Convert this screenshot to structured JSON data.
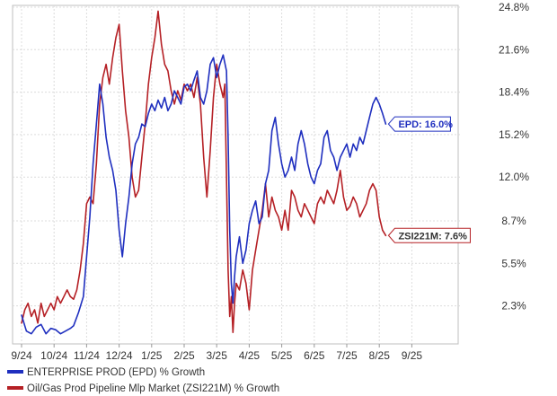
{
  "chart_data": {
    "type": "line",
    "title": "",
    "xlabel": "",
    "ylabel": "",
    "x_ticks": [
      "9/24",
      "10/24",
      "11/24",
      "12/24",
      "1/25",
      "2/25",
      "3/25",
      "4/25",
      "5/25",
      "6/25",
      "7/25",
      "8/25",
      "9/25"
    ],
    "y_ticks": [
      "2.3%",
      "5.5%",
      "8.7%",
      "12.0%",
      "15.2%",
      "18.4%",
      "21.6%",
      "24.8%"
    ],
    "ylim": [
      -0.5,
      24.8
    ],
    "grid": true,
    "legend_position": "bottom-left",
    "x_units": "months since 9/24",
    "series": [
      {
        "name": "ENTERPRISE PROD (EPD) % Growth",
        "color": "#1f2fbf",
        "callout": "EPD: 16.0%",
        "points": [
          [
            0.0,
            1.6
          ],
          [
            0.15,
            0.4
          ],
          [
            0.3,
            0.2
          ],
          [
            0.45,
            0.7
          ],
          [
            0.6,
            0.9
          ],
          [
            0.75,
            0.2
          ],
          [
            0.9,
            0.6
          ],
          [
            1.05,
            0.5
          ],
          [
            1.2,
            0.2
          ],
          [
            1.35,
            0.4
          ],
          [
            1.5,
            0.6
          ],
          [
            1.6,
            0.8
          ],
          [
            1.75,
            1.8
          ],
          [
            1.9,
            3.0
          ],
          [
            2.0,
            6.0
          ],
          [
            2.1,
            9.0
          ],
          [
            2.2,
            13.0
          ],
          [
            2.3,
            16.0
          ],
          [
            2.4,
            19.0
          ],
          [
            2.5,
            17.5
          ],
          [
            2.6,
            15.0
          ],
          [
            2.7,
            13.5
          ],
          [
            2.8,
            12.5
          ],
          [
            2.9,
            11.0
          ],
          [
            3.0,
            8.0
          ],
          [
            3.1,
            6.0
          ],
          [
            3.2,
            8.5
          ],
          [
            3.3,
            10.5
          ],
          [
            3.4,
            13.0
          ],
          [
            3.5,
            14.5
          ],
          [
            3.6,
            15.0
          ],
          [
            3.7,
            16.0
          ],
          [
            3.8,
            15.8
          ],
          [
            3.9,
            16.8
          ],
          [
            4.0,
            17.5
          ],
          [
            4.1,
            17.0
          ],
          [
            4.2,
            17.8
          ],
          [
            4.3,
            17.2
          ],
          [
            4.4,
            18.0
          ],
          [
            4.5,
            17.0
          ],
          [
            4.6,
            17.5
          ],
          [
            4.7,
            18.5
          ],
          [
            4.8,
            18.0
          ],
          [
            4.9,
            17.5
          ],
          [
            5.0,
            18.8
          ],
          [
            5.1,
            19.0
          ],
          [
            5.2,
            18.5
          ],
          [
            5.3,
            19.3
          ],
          [
            5.4,
            20.0
          ],
          [
            5.5,
            18.0
          ],
          [
            5.6,
            17.5
          ],
          [
            5.7,
            18.5
          ],
          [
            5.8,
            20.5
          ],
          [
            5.9,
            21.0
          ],
          [
            6.0,
            19.5
          ],
          [
            6.1,
            20.5
          ],
          [
            6.2,
            21.2
          ],
          [
            6.3,
            20.0
          ],
          [
            6.35,
            15.0
          ],
          [
            6.4,
            8.0
          ],
          [
            6.45,
            4.0
          ],
          [
            6.5,
            2.5
          ],
          [
            6.55,
            4.5
          ],
          [
            6.6,
            6.0
          ],
          [
            6.7,
            7.5
          ],
          [
            6.8,
            5.5
          ],
          [
            6.9,
            6.5
          ],
          [
            7.0,
            8.5
          ],
          [
            7.1,
            9.5
          ],
          [
            7.2,
            10.2
          ],
          [
            7.3,
            8.5
          ],
          [
            7.4,
            9.0
          ],
          [
            7.5,
            11.5
          ],
          [
            7.6,
            12.5
          ],
          [
            7.7,
            15.5
          ],
          [
            7.8,
            16.5
          ],
          [
            7.9,
            14.5
          ],
          [
            8.0,
            13.0
          ],
          [
            8.1,
            12.0
          ],
          [
            8.2,
            12.5
          ],
          [
            8.3,
            13.5
          ],
          [
            8.4,
            12.5
          ],
          [
            8.5,
            14.5
          ],
          [
            8.6,
            15.5
          ],
          [
            8.7,
            14.5
          ],
          [
            8.8,
            13.0
          ],
          [
            8.9,
            12.0
          ],
          [
            9.0,
            11.5
          ],
          [
            9.1,
            12.5
          ],
          [
            9.2,
            13.0
          ],
          [
            9.3,
            15.0
          ],
          [
            9.4,
            15.5
          ],
          [
            9.5,
            14.0
          ],
          [
            9.6,
            13.5
          ],
          [
            9.7,
            12.5
          ],
          [
            9.8,
            13.5
          ],
          [
            9.9,
            14.0
          ],
          [
            10.0,
            14.5
          ],
          [
            10.1,
            13.5
          ],
          [
            10.2,
            14.5
          ],
          [
            10.3,
            14.0
          ],
          [
            10.4,
            15.0
          ],
          [
            10.5,
            14.5
          ],
          [
            10.6,
            15.5
          ],
          [
            10.7,
            16.5
          ],
          [
            10.8,
            17.5
          ],
          [
            10.9,
            18.0
          ],
          [
            11.0,
            17.5
          ],
          [
            11.1,
            16.8
          ],
          [
            11.2,
            16.0
          ]
        ]
      },
      {
        "name": "Oil/Gas Prod Pipeline Mlp Market (ZSI221M) % Growth",
        "color": "#b52025",
        "callout": "ZSI221M: 7.6%",
        "points": [
          [
            0.0,
            1.0
          ],
          [
            0.1,
            2.0
          ],
          [
            0.2,
            2.5
          ],
          [
            0.3,
            1.5
          ],
          [
            0.4,
            2.0
          ],
          [
            0.5,
            1.0
          ],
          [
            0.6,
            2.5
          ],
          [
            0.7,
            1.5
          ],
          [
            0.8,
            2.0
          ],
          [
            0.9,
            2.5
          ],
          [
            1.0,
            2.0
          ],
          [
            1.1,
            3.0
          ],
          [
            1.2,
            2.5
          ],
          [
            1.3,
            3.0
          ],
          [
            1.4,
            3.5
          ],
          [
            1.5,
            3.0
          ],
          [
            1.6,
            2.8
          ],
          [
            1.7,
            3.5
          ],
          [
            1.8,
            5.0
          ],
          [
            1.9,
            7.0
          ],
          [
            2.0,
            10.0
          ],
          [
            2.1,
            10.5
          ],
          [
            2.2,
            10.0
          ],
          [
            2.3,
            13.0
          ],
          [
            2.4,
            17.5
          ],
          [
            2.5,
            19.5
          ],
          [
            2.6,
            20.5
          ],
          [
            2.7,
            19.0
          ],
          [
            2.8,
            21.0
          ],
          [
            2.9,
            22.5
          ],
          [
            3.0,
            23.5
          ],
          [
            3.1,
            20.0
          ],
          [
            3.2,
            17.0
          ],
          [
            3.3,
            15.0
          ],
          [
            3.4,
            12.0
          ],
          [
            3.5,
            10.5
          ],
          [
            3.6,
            11.0
          ],
          [
            3.7,
            13.5
          ],
          [
            3.8,
            16.0
          ],
          [
            3.9,
            19.0
          ],
          [
            4.0,
            21.0
          ],
          [
            4.1,
            22.5
          ],
          [
            4.2,
            24.5
          ],
          [
            4.3,
            22.0
          ],
          [
            4.4,
            20.5
          ],
          [
            4.5,
            20.0
          ],
          [
            4.6,
            18.5
          ],
          [
            4.7,
            17.5
          ],
          [
            4.8,
            18.5
          ],
          [
            4.9,
            17.8
          ],
          [
            5.0,
            19.0
          ],
          [
            5.1,
            18.5
          ],
          [
            5.2,
            19.0
          ],
          [
            5.3,
            18.0
          ],
          [
            5.4,
            19.5
          ],
          [
            5.5,
            17.5
          ],
          [
            5.6,
            13.5
          ],
          [
            5.7,
            10.5
          ],
          [
            5.8,
            14.0
          ],
          [
            5.9,
            18.0
          ],
          [
            6.0,
            20.5
          ],
          [
            6.1,
            19.0
          ],
          [
            6.2,
            18.0
          ],
          [
            6.25,
            19.0
          ],
          [
            6.3,
            12.0
          ],
          [
            6.35,
            5.0
          ],
          [
            6.4,
            1.5
          ],
          [
            6.45,
            3.0
          ],
          [
            6.5,
            0.3
          ],
          [
            6.55,
            2.5
          ],
          [
            6.6,
            4.0
          ],
          [
            6.7,
            3.5
          ],
          [
            6.8,
            5.0
          ],
          [
            6.9,
            4.0
          ],
          [
            7.0,
            2.0
          ],
          [
            7.1,
            5.0
          ],
          [
            7.2,
            6.5
          ],
          [
            7.3,
            8.0
          ],
          [
            7.4,
            9.5
          ],
          [
            7.5,
            11.5
          ],
          [
            7.6,
            9.0
          ],
          [
            7.7,
            10.5
          ],
          [
            7.8,
            9.5
          ],
          [
            7.9,
            9.0
          ],
          [
            8.0,
            8.0
          ],
          [
            8.1,
            9.5
          ],
          [
            8.2,
            8.0
          ],
          [
            8.3,
            11.0
          ],
          [
            8.4,
            10.5
          ],
          [
            8.5,
            9.5
          ],
          [
            8.6,
            9.0
          ],
          [
            8.7,
            10.0
          ],
          [
            8.8,
            9.5
          ],
          [
            8.9,
            9.0
          ],
          [
            9.0,
            8.5
          ],
          [
            9.1,
            10.0
          ],
          [
            9.2,
            10.5
          ],
          [
            9.3,
            10.0
          ],
          [
            9.4,
            11.0
          ],
          [
            9.5,
            10.5
          ],
          [
            9.6,
            10.0
          ],
          [
            9.7,
            11.0
          ],
          [
            9.8,
            12.5
          ],
          [
            9.9,
            10.5
          ],
          [
            10.0,
            9.5
          ],
          [
            10.1,
            9.8
          ],
          [
            10.2,
            10.5
          ],
          [
            10.3,
            10.0
          ],
          [
            10.4,
            9.0
          ],
          [
            10.5,
            9.5
          ],
          [
            10.6,
            10.0
          ],
          [
            10.7,
            11.0
          ],
          [
            10.8,
            11.5
          ],
          [
            10.9,
            11.0
          ],
          [
            11.0,
            9.0
          ],
          [
            11.1,
            8.0
          ],
          [
            11.2,
            7.6
          ]
        ]
      }
    ]
  }
}
